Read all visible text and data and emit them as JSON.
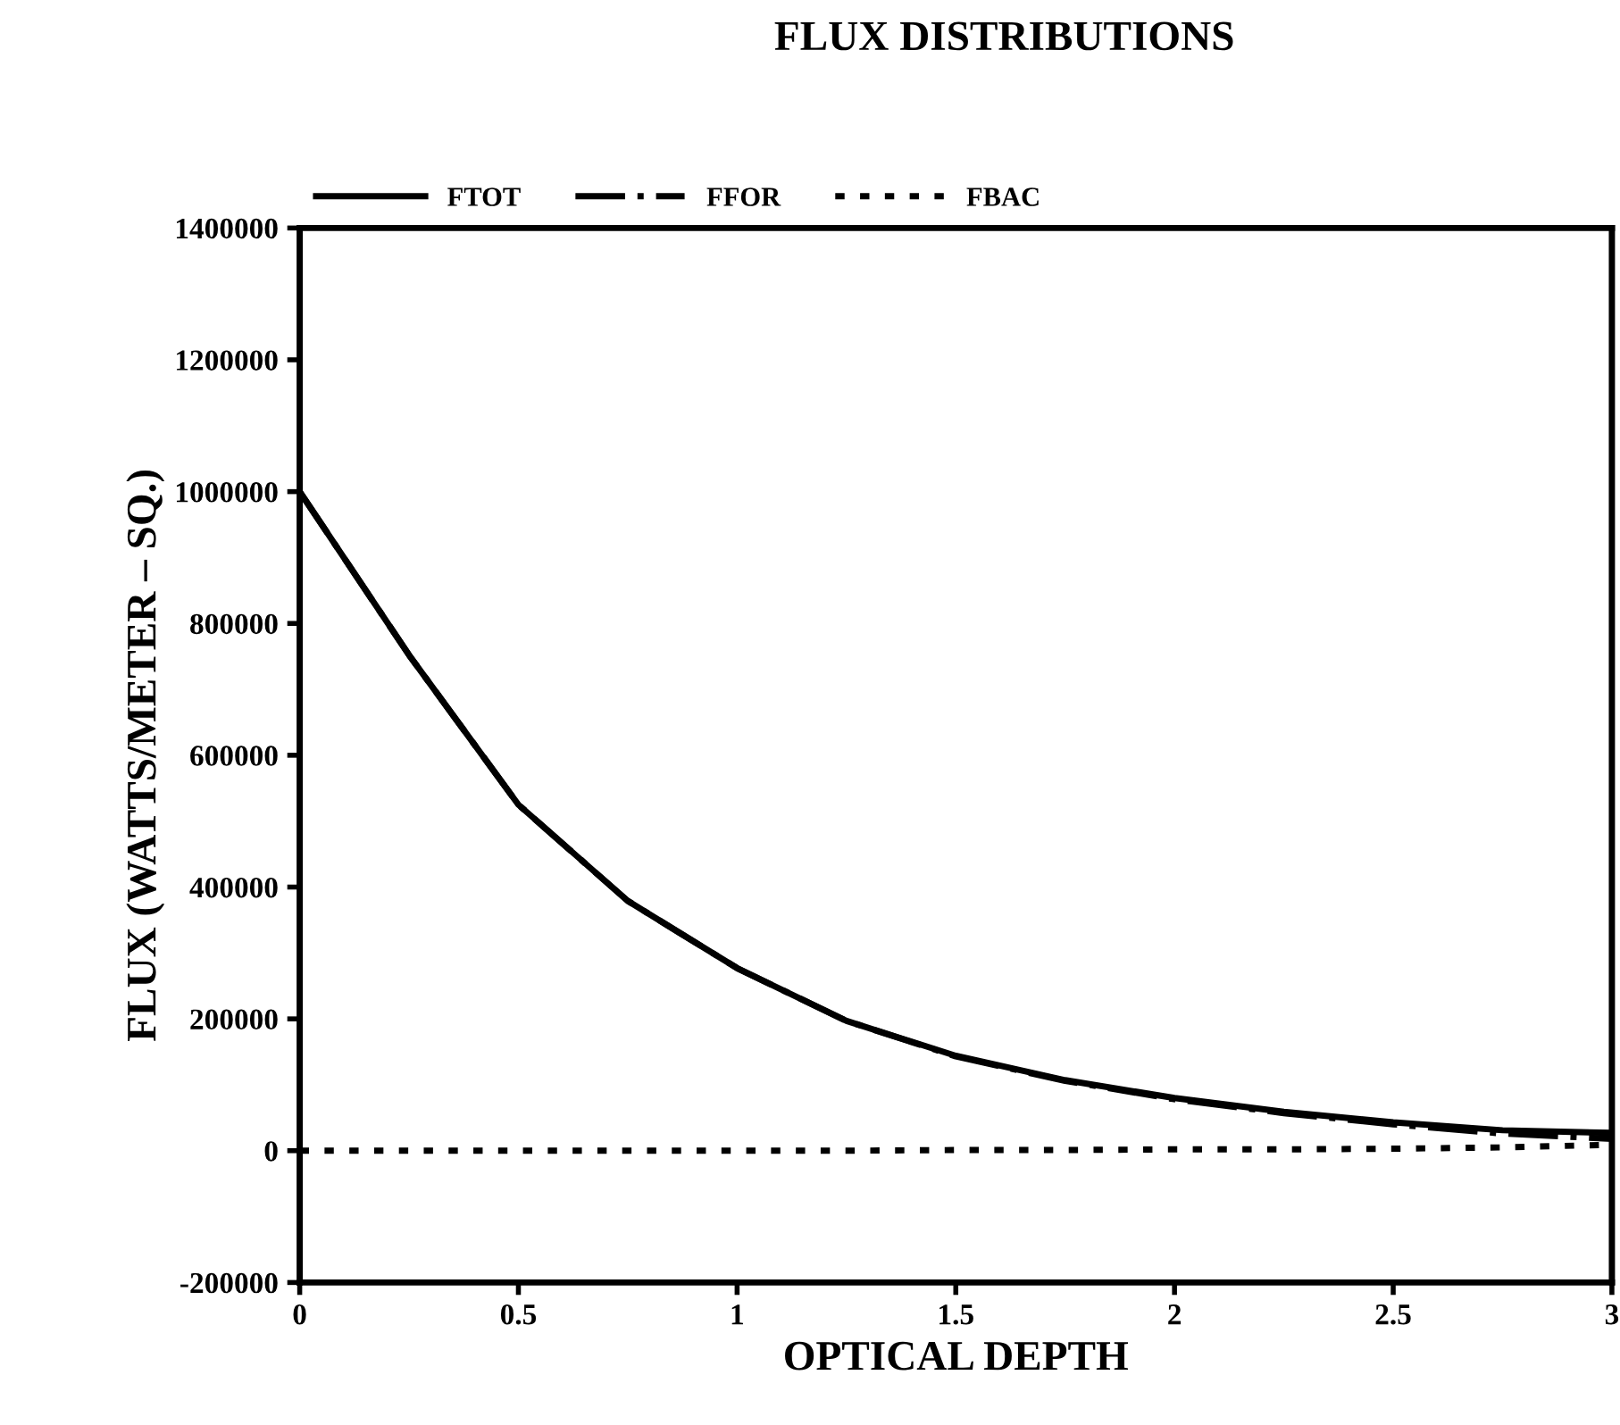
{
  "chart_data": {
    "type": "line",
    "title": "FLUX DISTRIBUTIONS",
    "xlabel": "OPTICAL DEPTH",
    "ylabel": "FLUX (WATTS/METER – SQ.)",
    "x": [
      0,
      0.25,
      0.5,
      0.75,
      1,
      1.25,
      1.5,
      1.75,
      2,
      2.25,
      2.5,
      2.75,
      3
    ],
    "series": [
      {
        "name": "FTOT",
        "color": "#000000",
        "line_style": "solid",
        "values": [
          1000000,
          752000,
          525000,
          379000,
          277000,
          197000,
          144000,
          107000,
          80000,
          59000,
          43000,
          31000,
          27000
        ]
      },
      {
        "name": "FFOR",
        "color": "#000000",
        "line_style": "dashed",
        "values": [
          1000000,
          752000,
          525000,
          379000,
          277000,
          197000,
          143000,
          106000,
          78000,
          57000,
          40000,
          26000,
          18000
        ]
      },
      {
        "name": "FBAC",
        "color": "#000000",
        "line_style": "dotted",
        "values": [
          0,
          0,
          0,
          0,
          0,
          0,
          1000,
          1000,
          2000,
          2000,
          3000,
          5000,
          9000
        ]
      }
    ],
    "xlim": [
      0,
      3
    ],
    "ylim": [
      -200000,
      1400000
    ],
    "xticks": [
      0,
      0.5,
      1,
      1.5,
      2,
      2.5,
      3
    ],
    "yticks": [
      -200000,
      0,
      200000,
      400000,
      600000,
      800000,
      1000000,
      1200000,
      1400000
    ],
    "grid": false,
    "legend": "top left",
    "marker": "none"
  }
}
